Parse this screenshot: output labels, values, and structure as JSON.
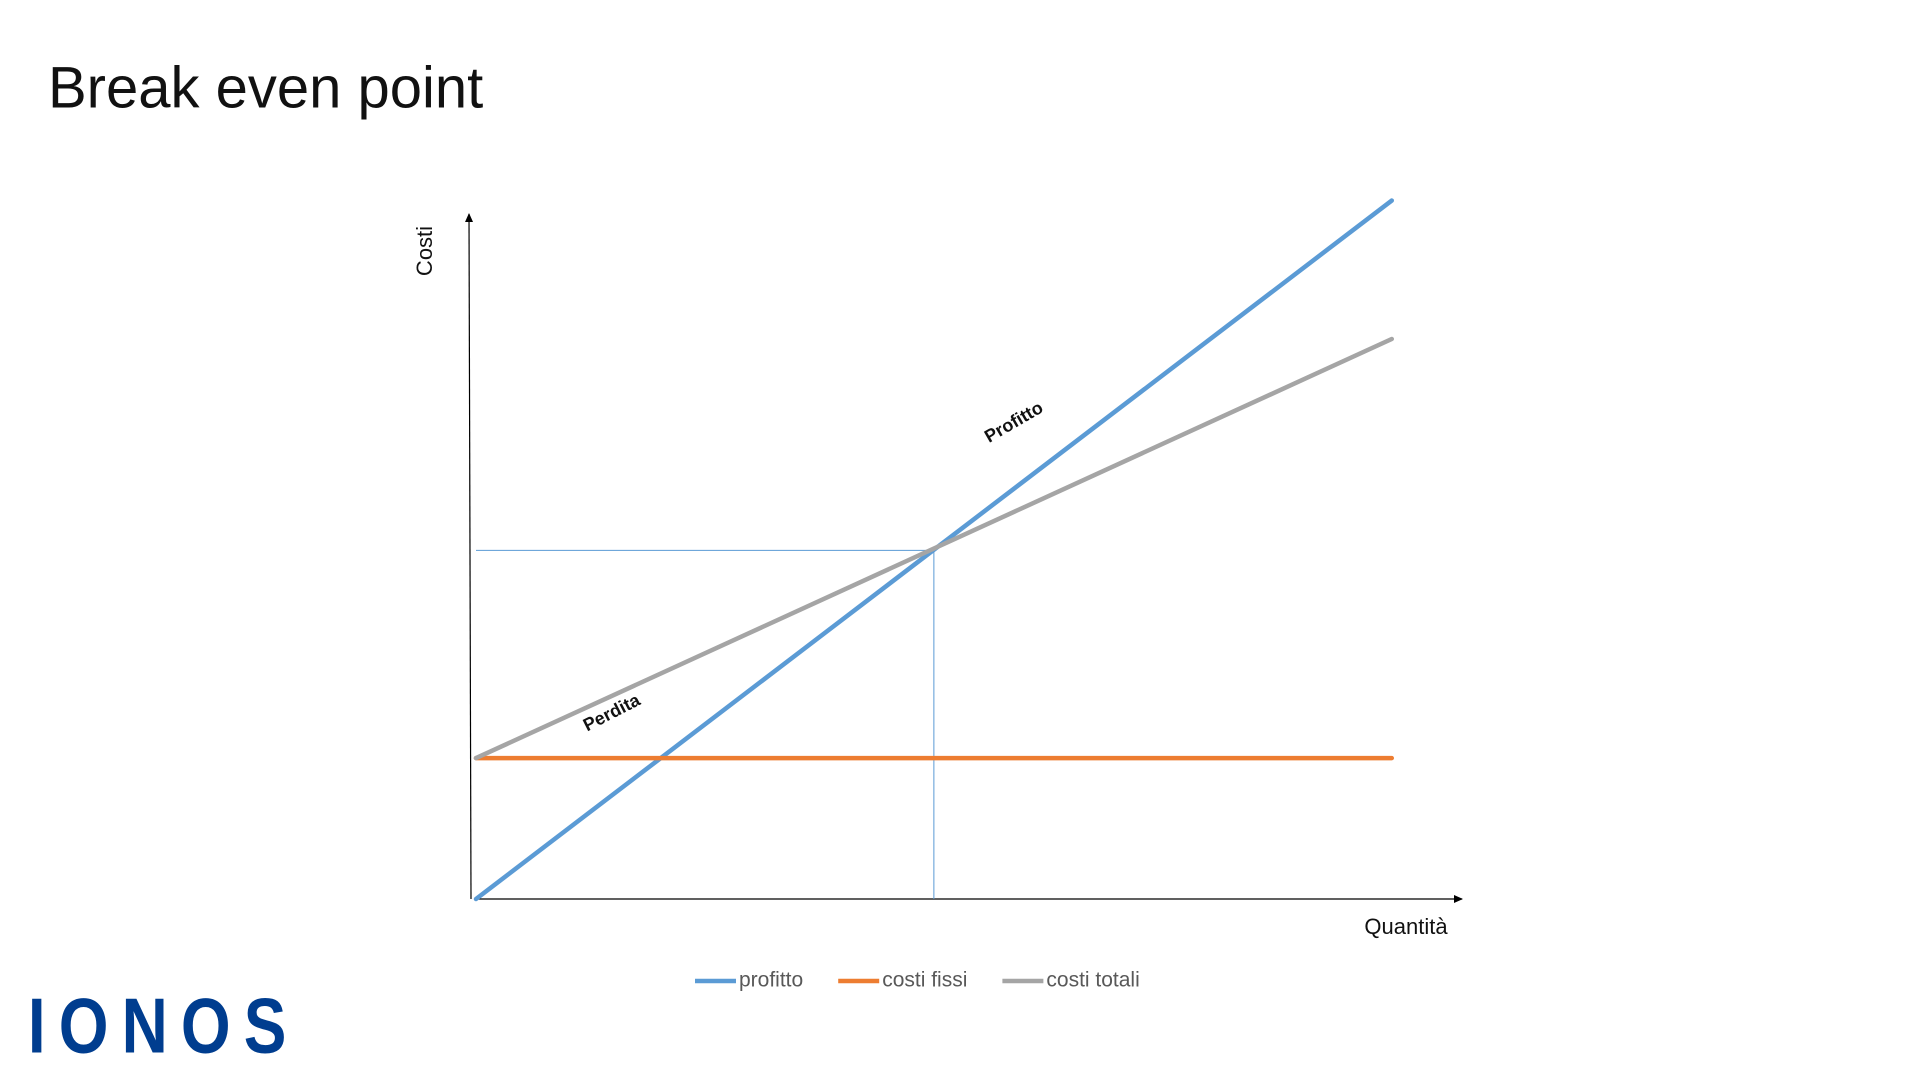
{
  "title": "Break even point",
  "logo": "IONOS",
  "chart_data": {
    "type": "line",
    "x_label": "Quantità",
    "y_label": "Costi",
    "x": [
      0,
      74
    ],
    "series": [
      {
        "name": "profitto",
        "color": "#5b9bd5",
        "values": [
          0,
          56.5
        ]
      },
      {
        "name": "costi fissi",
        "color": "#ed7d31",
        "values": [
          11.4,
          11.4
        ]
      },
      {
        "name": "costi totali",
        "color": "#a5a5a5",
        "values": [
          11.4,
          45.3
        ]
      }
    ],
    "break_even": {
      "x": 37,
      "y": 28.2,
      "color": "#5b9bd5"
    },
    "annotations": [
      {
        "text": "Perdita",
        "x": 11,
        "y": 15
      },
      {
        "text": "Profitto",
        "x": 43.5,
        "y": 38.5
      }
    ],
    "xlim": [
      0,
      80
    ],
    "ylim": [
      0,
      58
    ],
    "legend": "bottom"
  }
}
